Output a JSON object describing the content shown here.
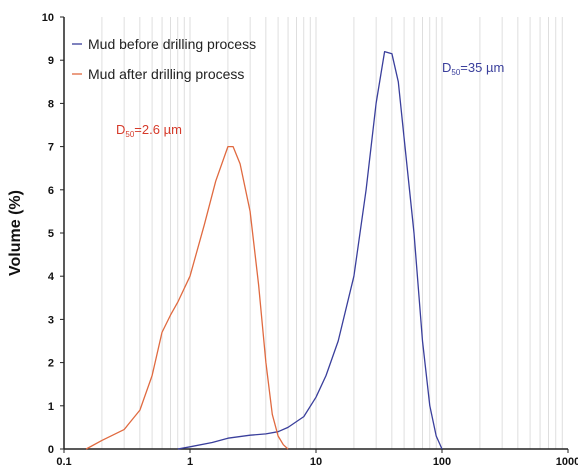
{
  "chart_data": {
    "type": "line",
    "x_scale": "log",
    "xlim": [
      0.1,
      1000
    ],
    "ylim": [
      0,
      10
    ],
    "x_ticks": [
      "0.1",
      "1",
      "10",
      "100",
      "1000"
    ],
    "y_ticks": [
      "0",
      "1",
      "2",
      "3",
      "4",
      "5",
      "6",
      "7",
      "8",
      "9",
      "10"
    ],
    "ylabel": "Volume (%)",
    "xlabel": "",
    "grid": "vertical minor lines",
    "legend_position": "top-left",
    "series": [
      {
        "name": "Mud before drilling process",
        "color": "#3a3f9c",
        "points": [
          [
            0.8,
            0
          ],
          [
            1,
            0.05
          ],
          [
            1.5,
            0.15
          ],
          [
            2,
            0.25
          ],
          [
            3,
            0.32
          ],
          [
            4,
            0.35
          ],
          [
            5,
            0.4
          ],
          [
            6,
            0.5
          ],
          [
            8,
            0.75
          ],
          [
            10,
            1.2
          ],
          [
            12,
            1.7
          ],
          [
            15,
            2.5
          ],
          [
            20,
            4
          ],
          [
            25,
            6
          ],
          [
            30,
            8
          ],
          [
            35,
            9.2
          ],
          [
            40,
            9.15
          ],
          [
            45,
            8.5
          ],
          [
            50,
            7.2
          ],
          [
            60,
            5
          ],
          [
            70,
            2.5
          ],
          [
            80,
            1
          ],
          [
            90,
            0.3
          ],
          [
            100,
            0
          ]
        ]
      },
      {
        "name": "Mud after drilling process",
        "color": "#e06a40",
        "points": [
          [
            0.15,
            0
          ],
          [
            0.2,
            0.2
          ],
          [
            0.3,
            0.45
          ],
          [
            0.4,
            0.9
          ],
          [
            0.5,
            1.7
          ],
          [
            0.6,
            2.7
          ],
          [
            0.7,
            3.1
          ],
          [
            0.8,
            3.4
          ],
          [
            1,
            4
          ],
          [
            1.3,
            5.2
          ],
          [
            1.6,
            6.2
          ],
          [
            2,
            7.0
          ],
          [
            2.2,
            7.0
          ],
          [
            2.5,
            6.6
          ],
          [
            3,
            5.5
          ],
          [
            3.5,
            3.8
          ],
          [
            4,
            2.0
          ],
          [
            4.5,
            0.8
          ],
          [
            5,
            0.3
          ],
          [
            5.5,
            0.1
          ],
          [
            6,
            0
          ]
        ]
      }
    ],
    "annotations": [
      {
        "main": "D",
        "sub": "50",
        "value": "=2.6 µm",
        "color": "#d63a2a"
      },
      {
        "main": "D",
        "sub": "50",
        "value": "=35 µm",
        "color": "#3a3f9c"
      }
    ]
  }
}
